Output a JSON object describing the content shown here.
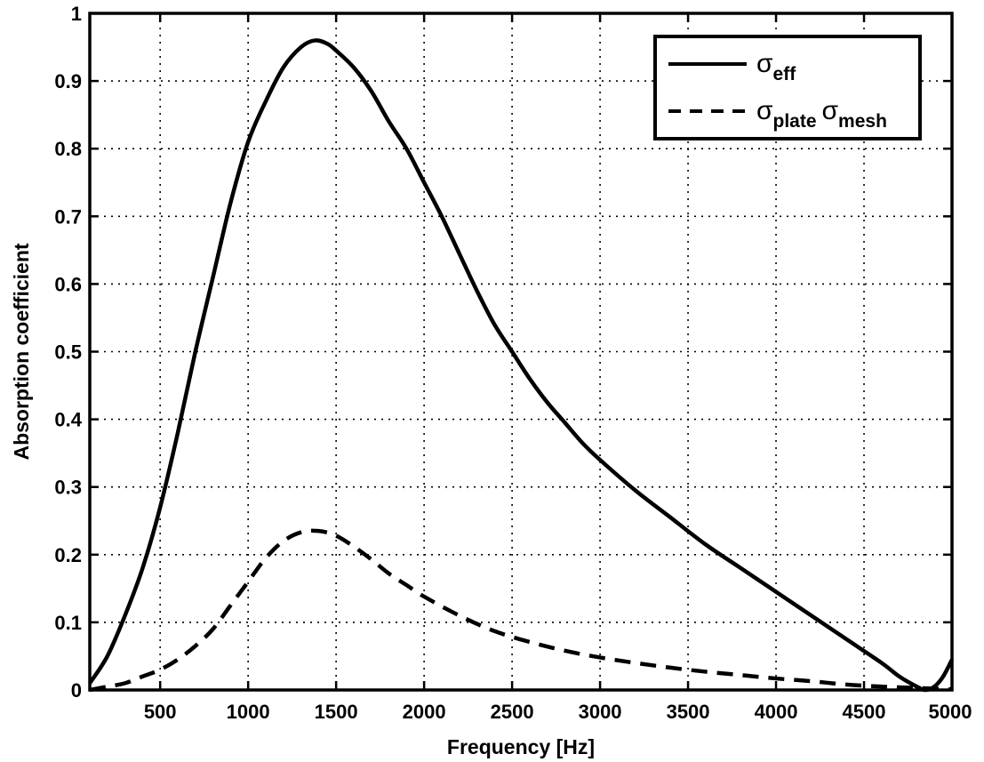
{
  "chart_data": {
    "type": "line",
    "xlabel": "Frequency [Hz]",
    "ylabel": "Absorption coefficient",
    "xlim": [
      100,
      5000
    ],
    "ylim": [
      0,
      1
    ],
    "xticks": [
      500,
      1000,
      1500,
      2000,
      2500,
      3000,
      3500,
      4000,
      4500,
      5000
    ],
    "yticks": [
      0,
      0.1,
      0.2,
      0.3,
      0.4,
      0.5,
      0.6,
      0.7,
      0.8,
      0.9,
      1
    ],
    "ytick_labels": [
      "0",
      "0.1",
      "0.2",
      "0.3",
      "0.4",
      "0.5",
      "0.6",
      "0.7",
      "0.8",
      "0.9",
      "1"
    ],
    "grid": true,
    "legend_position": "top-right",
    "series": [
      {
        "name": "σ_eff",
        "legend_symbol": "σ",
        "legend_sub": "eff",
        "style": "solid",
        "color": "#000000",
        "x": [
          100,
          200,
          300,
          400,
          500,
          600,
          700,
          800,
          900,
          1000,
          1100,
          1200,
          1300,
          1380,
          1450,
          1500,
          1600,
          1700,
          1800,
          1900,
          2000,
          2100,
          2200,
          2300,
          2400,
          2500,
          2600,
          2700,
          2800,
          2900,
          3000,
          3200,
          3400,
          3600,
          3800,
          4000,
          4200,
          4400,
          4600,
          4700,
          4800,
          4850,
          4900,
          4950,
          5000
        ],
        "y": [
          0.01,
          0.05,
          0.11,
          0.18,
          0.27,
          0.38,
          0.5,
          0.61,
          0.72,
          0.81,
          0.87,
          0.92,
          0.95,
          0.96,
          0.955,
          0.945,
          0.92,
          0.885,
          0.84,
          0.8,
          0.75,
          0.7,
          0.645,
          0.59,
          0.54,
          0.5,
          0.46,
          0.425,
          0.395,
          0.365,
          0.34,
          0.295,
          0.255,
          0.215,
          0.18,
          0.145,
          0.11,
          0.075,
          0.04,
          0.02,
          0.005,
          0.0,
          0.005,
          0.02,
          0.045
        ]
      },
      {
        "name": "σ_plate σ_mesh",
        "legend_symbol": "σ",
        "legend_sub": "plate",
        "legend_symbol2": "σ",
        "legend_sub2": "mesh",
        "style": "dashed",
        "color": "#000000",
        "x": [
          100,
          200,
          300,
          400,
          500,
          600,
          700,
          800,
          900,
          1000,
          1100,
          1200,
          1300,
          1400,
          1500,
          1600,
          1700,
          1800,
          1900,
          2000,
          2200,
          2400,
          2600,
          2800,
          3000,
          3200,
          3400,
          3600,
          3800,
          4000,
          4200,
          4400,
          4600,
          4800,
          5000
        ],
        "y": [
          0.0,
          0.005,
          0.01,
          0.02,
          0.03,
          0.045,
          0.065,
          0.09,
          0.125,
          0.16,
          0.195,
          0.22,
          0.233,
          0.235,
          0.228,
          0.212,
          0.193,
          0.172,
          0.155,
          0.138,
          0.11,
          0.087,
          0.071,
          0.058,
          0.048,
          0.04,
          0.033,
          0.027,
          0.022,
          0.017,
          0.013,
          0.008,
          0.005,
          0.003,
          0.001
        ]
      }
    ]
  }
}
